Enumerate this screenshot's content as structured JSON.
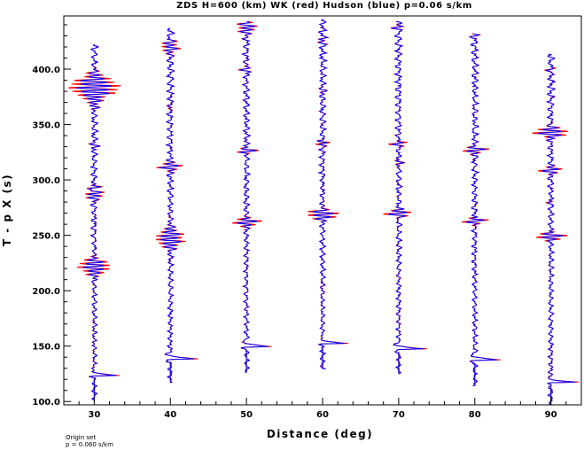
{
  "chart_data": {
    "type": "line",
    "title": "ZDS H=600 (km) WK (red) Hudson (blue) p=0.06 s/km",
    "xlabel": "Distance (deg)",
    "ylabel": "T - p X (s)",
    "xlim": [
      26,
      94
    ],
    "ylim": [
      97,
      448
    ],
    "x_ticks": [
      "30",
      "40",
      "50",
      "60",
      "70",
      "80",
      "90"
    ],
    "y_ticks": [
      "100.0",
      "150.0",
      "200.0",
      "250.0",
      "300.0",
      "350.0",
      "400.0"
    ],
    "grid": false,
    "colors": {
      "wk": "#ff0000",
      "hudson": "#0000ff"
    },
    "series": [
      {
        "name": "WK",
        "color": "#ff0000"
      },
      {
        "name": "Hudson",
        "color": "#0000ff"
      }
    ],
    "traces": [
      {
        "distance": 30,
        "first_arrival": 123,
        "start": 101,
        "end": 422,
        "packets": [
          [
            384,
            3.5,
            5
          ],
          [
            222,
            2.5,
            3.5
          ],
          [
            293,
            1.8,
            1.2
          ],
          [
            288,
            1.4,
            2.5
          ],
          [
            365,
            0.6,
            1.5
          ],
          [
            330,
            0.5,
            1.5
          ]
        ]
      },
      {
        "distance": 40,
        "first_arrival": 138,
        "start": 117,
        "end": 437,
        "packets": [
          [
            247,
            2.0,
            4
          ],
          [
            312,
            1.6,
            1.8
          ],
          [
            421,
            1.2,
            3
          ],
          [
            365,
            0.5,
            1.5
          ]
        ]
      },
      {
        "distance": 50,
        "first_arrival": 149,
        "start": 126,
        "end": 443,
        "packets": [
          [
            262,
            2.2,
            2
          ],
          [
            326,
            1.6,
            1.2
          ],
          [
            438,
            1.2,
            3
          ],
          [
            400,
            0.7,
            1.5
          ]
        ]
      },
      {
        "distance": 60,
        "first_arrival": 152,
        "start": 129,
        "end": 445,
        "packets": [
          [
            269,
            2.5,
            2
          ],
          [
            333,
            1.6,
            1.1
          ],
          [
            425,
            0.6,
            1.5
          ],
          [
            380,
            0.4,
            1.5
          ]
        ]
      },
      {
        "distance": 70,
        "first_arrival": 147,
        "start": 125,
        "end": 443,
        "packets": [
          [
            270,
            2.2,
            1.5
          ],
          [
            333,
            1.6,
            1.2
          ],
          [
            315,
            0.8,
            1.5
          ],
          [
            438,
            0.8,
            1.5
          ]
        ]
      },
      {
        "distance": 80,
        "first_arrival": 137,
        "start": 114,
        "end": 432,
        "packets": [
          [
            263,
            2.0,
            1.5
          ],
          [
            327,
            1.8,
            1.4
          ],
          [
            433,
            0.8,
            1.5
          ]
        ]
      },
      {
        "distance": 90,
        "first_arrival": 117,
        "start": 97,
        "end": 414,
        "packets": [
          [
            249,
            2.8,
            1.5
          ],
          [
            343,
            2.6,
            2
          ],
          [
            309,
            1.6,
            1.5
          ],
          [
            400,
            0.8,
            1.5
          ],
          [
            280,
            0.6,
            1.5
          ]
        ]
      }
    ]
  },
  "footnote": {
    "line1": "Origin set",
    "line2": "p = 0.060 s/km"
  }
}
